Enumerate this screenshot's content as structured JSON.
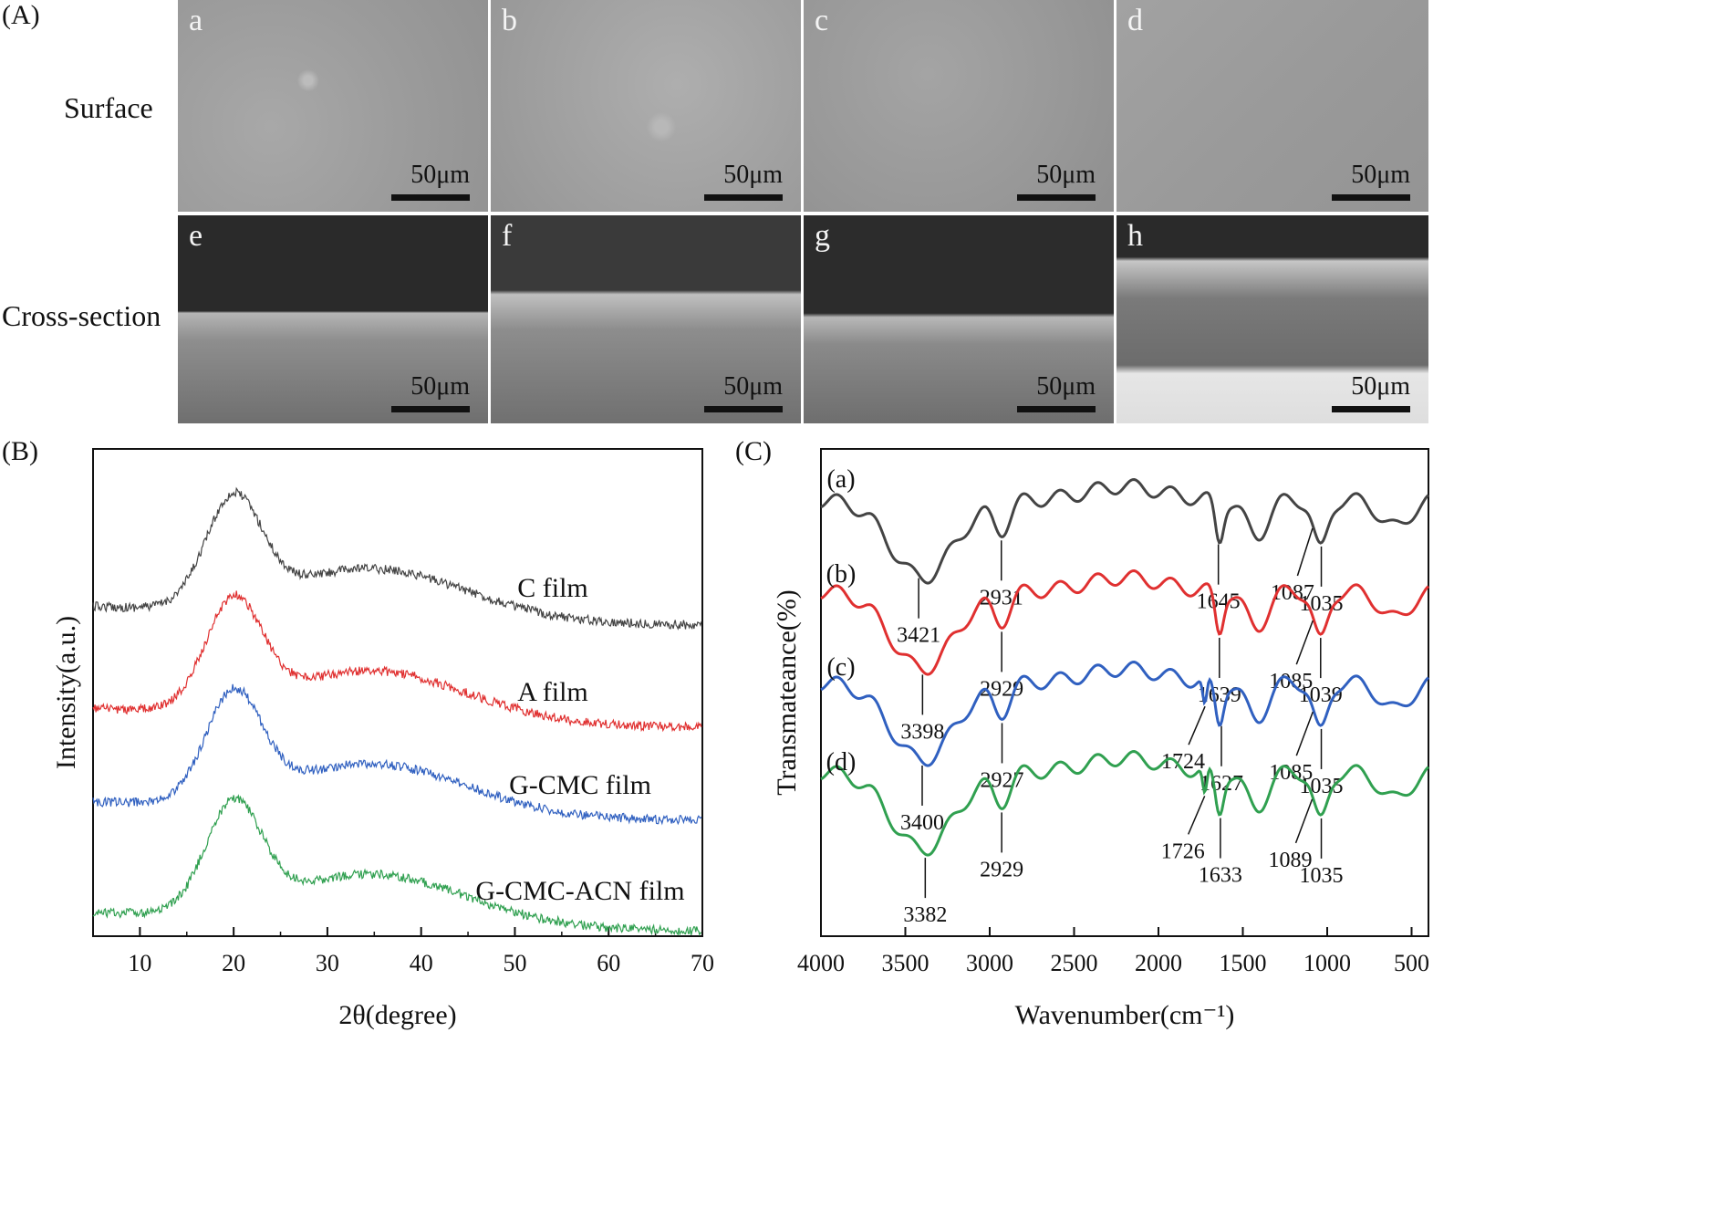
{
  "panels": {
    "A": "(A)",
    "B": "(B)",
    "C": "(C)"
  },
  "sem": {
    "row_labels": {
      "surface": "Surface",
      "cross": "Cross-section"
    },
    "scale": "50μm",
    "tiles": [
      {
        "letter": "a",
        "row": "surface"
      },
      {
        "letter": "b",
        "row": "surface"
      },
      {
        "letter": "c",
        "row": "surface"
      },
      {
        "letter": "d",
        "row": "surface"
      },
      {
        "letter": "e",
        "row": "cross"
      },
      {
        "letter": "f",
        "row": "cross"
      },
      {
        "letter": "g",
        "row": "cross"
      },
      {
        "letter": "h",
        "row": "cross"
      }
    ]
  },
  "chart_data": [
    {
      "type": "line",
      "xlabel": "2θ(degree)",
      "ylabel": "Intensity(a.u.)",
      "xlim": [
        5,
        70
      ],
      "xticks": [
        10,
        20,
        30,
        40,
        50,
        60,
        70
      ],
      "peak_2theta": 20,
      "series": [
        {
          "name": "C film",
          "color": "#444444"
        },
        {
          "name": "A film",
          "color": "#e03030"
        },
        {
          "name": "G-CMC film",
          "color": "#3060c0"
        },
        {
          "name": "G-CMC-ACN film",
          "color": "#30a050"
        }
      ]
    },
    {
      "type": "line",
      "xlabel": "Wavenumber(cm⁻¹)",
      "ylabel": "Transmateance(%)",
      "xlim": [
        4000,
        400
      ],
      "xticks": [
        4000,
        3500,
        3000,
        2500,
        2000,
        1500,
        1000,
        500
      ],
      "series": [
        {
          "name": "(a)",
          "color": "#444444",
          "peaks": [
            "3421",
            "2931",
            "1645",
            "1087",
            "1035"
          ]
        },
        {
          "name": "(b)",
          "color": "#e03030",
          "peaks": [
            "3398",
            "2929",
            "1639",
            "1085",
            "1039"
          ]
        },
        {
          "name": "(c)",
          "color": "#3060c0",
          "peaks": [
            "3400",
            "2927",
            "1724",
            "1627",
            "1085",
            "1035"
          ]
        },
        {
          "name": "(d)",
          "color": "#30a050",
          "peaks": [
            "3382",
            "2929",
            "1726",
            "1633",
            "1089",
            "1035"
          ]
        }
      ]
    }
  ]
}
